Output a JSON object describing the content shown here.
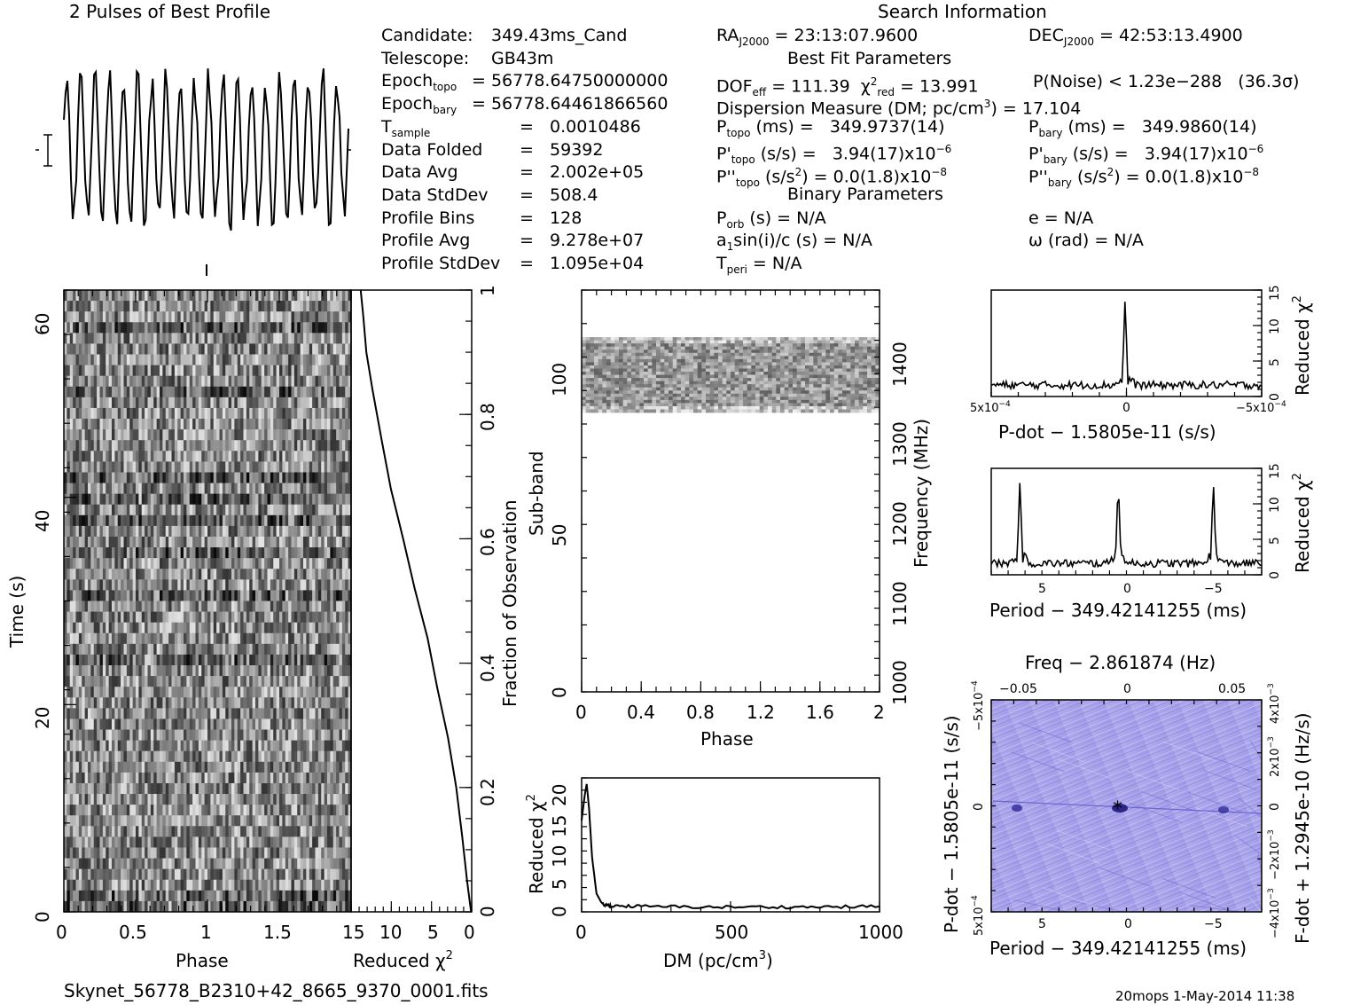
{
  "titles": {
    "profile": "2 Pulses of Best Profile",
    "search": "Search Information",
    "best_fit": "Best Fit Parameters",
    "binary": "Binary Parameters",
    "filename": "Skynet_56778_B2310+42_8665_9370_0001.fits",
    "footer": "20mops   1-May-2014 11:38"
  },
  "info_left": [
    {
      "k": "Candidate:",
      "v": "349.43ms_Cand"
    },
    {
      "k": "Telescope:",
      "v": "GB43m"
    },
    {
      "k": "Epoch",
      "sub": "topo",
      "v": "= 56778.64750000000"
    },
    {
      "k": "Epoch",
      "sub": "bary",
      "v": "= 56778.64461866560"
    },
    {
      "k": "T",
      "sub": "sample",
      "v": "=   0.0010486"
    },
    {
      "k": "Data Folded",
      "v": "=   59392"
    },
    {
      "k": "Data Avg",
      "v": "=   2.002e+05"
    },
    {
      "k": "Data StdDev",
      "v": "=   508.4"
    },
    {
      "k": "Profile Bins",
      "v": "=   128"
    },
    {
      "k": "Profile Avg",
      "v": "=   9.278e+07"
    },
    {
      "k": "Profile StdDev",
      "v": "=   1.095e+04"
    }
  ],
  "info_mid": {
    "ra": "RA",
    "ra_sub": "J2000",
    "ra_val": " = 23:13:07.9600",
    "dec": "DEC",
    "dec_sub": "J2000",
    "dec_val": " = 42:53:13.4900",
    "dof": "DOF",
    "dof_sub": "eff",
    "dof_val": " = 111.39",
    "chi": "χ",
    "chi_sup": "2",
    "chi_sub": "red",
    "chi_val": " = 13.991",
    "pnoise": "P(Noise) < 1.23e−288   (36.3σ)",
    "dm": "Dispersion Measure (DM; pc/cm",
    "dm_sup": "3",
    "dm_val": ") = 17.104",
    "ptopo": "P",
    "ptopo_sub": "topo",
    "ptopo_val": " (ms) =   349.9737(14)",
    "pbary": "P",
    "pbary_sub": "bary",
    "pbary_val": " (ms) =   349.9860(14)",
    "pdtopo": "P'",
    "pdtopo_sub": "topo",
    "pdtopo_val": " (s/s) =   3.94(17)x10",
    "pdtopo_exp": "−6",
    "pdbary": "P'",
    "pdbary_sub": "bary",
    "pdbary_val": " (s/s) =   3.94(17)x10",
    "pdbary_exp": "−6",
    "pddtopo": "P''",
    "pddtopo_sub": "topo",
    "pddtopo_val": " (s/s",
    "pddtopo_sup": "2",
    "pddtopo_val2": ") = 0.0(1.8)x10",
    "pddtopo_exp": "−8",
    "pddbary": "P''",
    "pddbary_sub": "bary",
    "pddbary_val": " (s/s",
    "pddbary_sup": "2",
    "pddbary_val2": ") = 0.0(1.8)x10",
    "pddbary_exp": "−8",
    "porb": "P",
    "porb_sub": "orb",
    "porb_val": " (s) = N/A",
    "e": "e = N/A",
    "a1": "a",
    "a1_sub": "1",
    "a1_val": "sin(i)/c (s) = N/A",
    "omega": "ω (rad) = N/A",
    "tperi": "T",
    "tperi_sub": "peri",
    "tperi_val": " = N/A"
  },
  "chart_data": [
    {
      "type": "line",
      "id": "profile",
      "title": "2 Pulses of Best Profile",
      "x": [
        0,
        2
      ],
      "note_points": 40
    },
    {
      "type": "heatmap",
      "id": "time-phase",
      "xlabel": "Phase",
      "ylabel": "Time (s)",
      "xlim": [
        0,
        2
      ],
      "ylim": [
        0,
        63
      ],
      "xticks": [
        "0",
        "0.5",
        "1",
        "1.5"
      ],
      "yticks": [
        "0",
        "20",
        "40",
        "60"
      ]
    },
    {
      "type": "line",
      "id": "time-chi2",
      "xlabel": "Reduced χ",
      "xlabel_sup": "2",
      "ylabel_right": "Fraction of Observation",
      "xticks": [
        "15",
        "10",
        "5",
        "0"
      ],
      "yticks_right": [
        "0",
        "0.2",
        "0.4",
        "0.6",
        "0.8",
        "1"
      ],
      "x": [
        0.0,
        0.5,
        1.2,
        2.0,
        3.0,
        4.2,
        5.5,
        7.0,
        8.5,
        10.0,
        11.2,
        12.3,
        13.0,
        13.6,
        13.9
      ],
      "y": [
        0.0,
        0.05,
        0.12,
        0.2,
        0.28,
        0.36,
        0.44,
        0.52,
        0.6,
        0.68,
        0.76,
        0.84,
        0.9,
        0.96,
        1.0
      ]
    },
    {
      "type": "heatmap",
      "id": "subband-phase",
      "xlabel": "Phase",
      "ylabel": "Sub-band",
      "ylabel_right": "Frequency (MHz)",
      "xlim": [
        0,
        2
      ],
      "ylim": [
        0,
        128
      ],
      "xticks": [
        "0",
        "0.4",
        "0.8",
        "1.2",
        "1.6",
        "2"
      ],
      "yticks": [
        "0",
        "50",
        "100"
      ],
      "yticks_right": [
        "1000",
        "1100",
        "1200",
        "1300",
        "1400"
      ]
    },
    {
      "type": "line",
      "id": "dm-chi2",
      "xlabel": "DM (pc/cm",
      "xlabel_sup": "3",
      "xlabel_end": ")",
      "ylabel": "Reduced χ",
      "ylabel_sup": "2",
      "xlim": [
        0,
        1000
      ],
      "ylim": [
        0,
        22
      ],
      "xticks": [
        "0",
        "500",
        "1000"
      ],
      "yticks": [
        "0",
        "5",
        "10",
        "15",
        "20"
      ],
      "x": [
        0,
        10,
        17,
        25,
        35,
        50,
        70,
        100,
        200,
        400,
        600,
        800,
        1000
      ],
      "y": [
        15,
        19,
        21,
        17,
        9,
        3,
        1.2,
        1.0,
        0.9,
        0.8,
        0.8,
        0.8,
        0.9
      ]
    },
    {
      "type": "line",
      "id": "pdot-chi2",
      "xlabel": "P-dot − 1.5805e-11 (s/s)",
      "ylabel_right": "Reduced χ",
      "ylabel_right_sup": "2",
      "xticks": [
        "5x10",
        "0",
        "−5x10"
      ],
      "xtick_exp": "−4",
      "yticks_right": [
        "0",
        "5",
        "10",
        "15"
      ],
      "peak_x": 0,
      "peak_y": 14,
      "baseline": 1.5
    },
    {
      "type": "line",
      "id": "period-chi2",
      "xlabel": "Period − 349.42141255 (ms)",
      "ylabel_right": "Reduced χ",
      "ylabel_right_sup": "2",
      "xticks": [
        "5",
        "0",
        "−5"
      ],
      "yticks_right": [
        "0",
        "5",
        "10",
        "15"
      ],
      "peaks_x": [
        6.5,
        0.5,
        -5.3
      ],
      "peaks_y": [
        13.5,
        13.5,
        13.5
      ],
      "baseline": 1.5
    },
    {
      "type": "heatmap",
      "id": "pdot-period",
      "title": "Freq − 2.861874 (Hz)",
      "xlabel": "Period − 349.42141255 (ms)",
      "ylabel": "P-dot − 1.5805e-11 (s/s)",
      "ylabel_right": "F-dot + 1.2945e-10 (Hz/s)",
      "xticks": [
        "5",
        "0",
        "−5"
      ],
      "xticks_top": [
        "−0.05",
        "0",
        "0.05"
      ],
      "yticks": [
        "5x10",
        "0",
        "−5x10"
      ],
      "ytick_exp": "−4",
      "yticks_right": [
        "−4x10",
        "−2x10",
        "0",
        "2x10",
        "4x10"
      ],
      "ytick_right_exp": "−3"
    }
  ]
}
